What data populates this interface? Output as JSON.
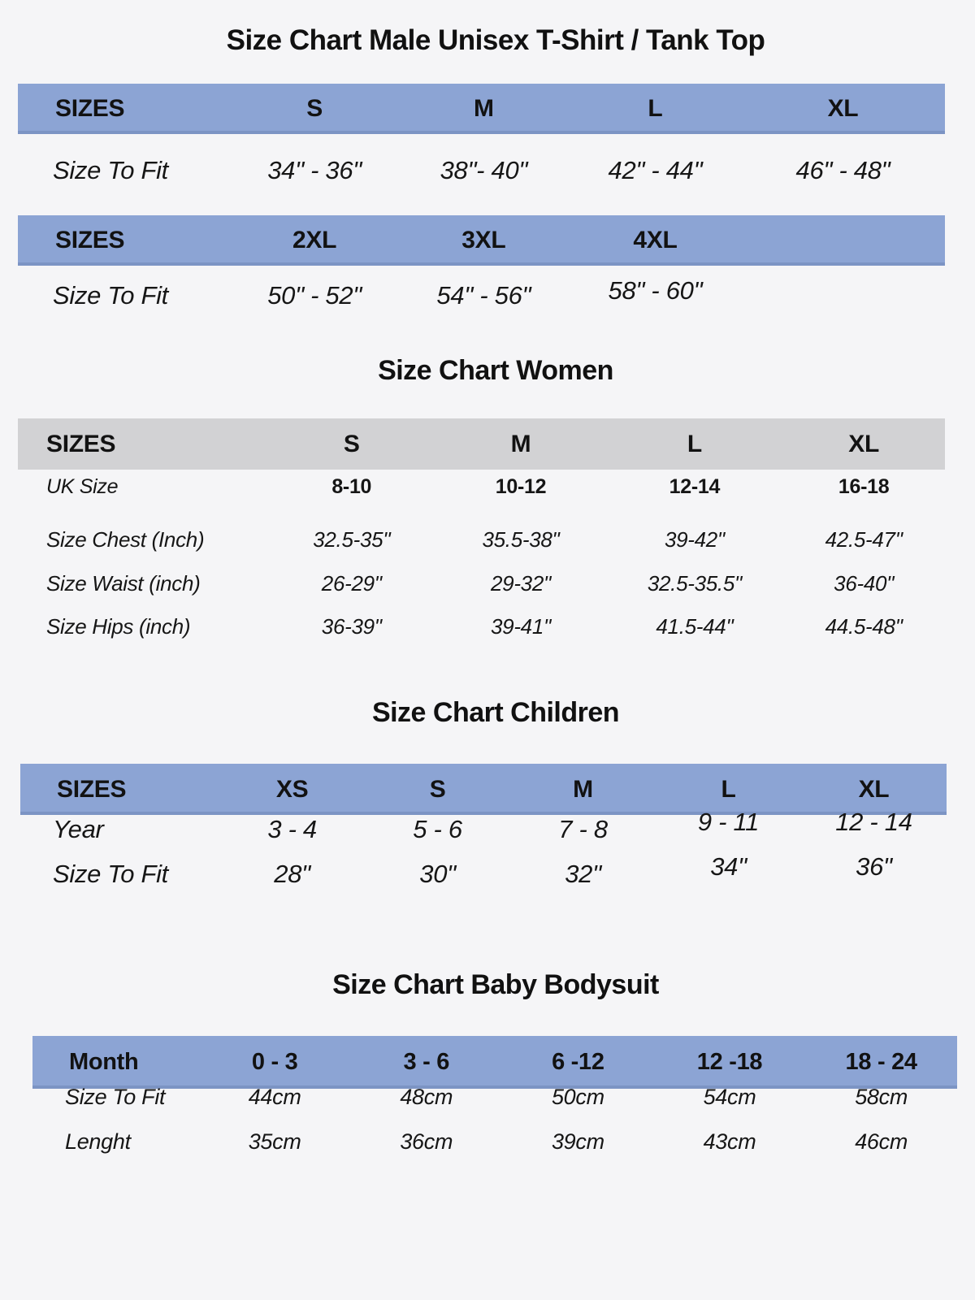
{
  "colors": {
    "background": "#f5f5f7",
    "band_blue": "#8ca4d4",
    "band_gray": "#d2d2d4",
    "text": "#161616"
  },
  "male": {
    "title": "Size Chart Male Unisex T-Shirt / Tank Top",
    "t1": {
      "corner": "SIZES",
      "h": [
        "S",
        "M",
        "L",
        "XL"
      ],
      "rowLabel": "Size To Fit",
      "v": [
        "34\" - 36\"",
        "38\"- 40\"",
        "42\" - 44\"",
        "46\" - 48\""
      ]
    },
    "t2": {
      "corner": "SIZES",
      "h": [
        "2XL",
        "3XL",
        "4XL"
      ],
      "rowLabel": "Size To Fit",
      "v": [
        "50\" - 52\"",
        "54\" - 56\"",
        "58\" - 60\""
      ]
    }
  },
  "women": {
    "title": "Size Chart Women",
    "corner": "SIZES",
    "h": [
      "S",
      "M",
      "L",
      "XL"
    ],
    "rows": [
      {
        "label": "UK Size",
        "v": [
          "8-10",
          "10-12",
          "12-14",
          "16-18"
        ]
      },
      {
        "label": "Size Chest (Inch)",
        "v": [
          "32.5-35\"",
          "35.5-38\"",
          "39-42\"",
          "42.5-47\""
        ]
      },
      {
        "label": "Size Waist (inch)",
        "v": [
          "26-29\"",
          "29-32\"",
          "32.5-35.5\"",
          "36-40\""
        ]
      },
      {
        "label": "Size Hips (inch)",
        "v": [
          "36-39\"",
          "39-41\"",
          "41.5-44\"",
          "44.5-48\""
        ]
      }
    ]
  },
  "children": {
    "title": "Size Chart Children",
    "corner": "SIZES",
    "h": [
      "XS",
      "S",
      "M",
      "L",
      "XL"
    ],
    "rows": [
      {
        "label": "Year",
        "v": [
          "3 - 4",
          "5 - 6",
          "7 - 8",
          "9 - 11",
          "12 - 14"
        ]
      },
      {
        "label": "Size To Fit",
        "v": [
          "28\"",
          "30\"",
          "32\"",
          "34\"",
          "36\""
        ]
      }
    ]
  },
  "baby": {
    "title": "Size Chart Baby Bodysuit",
    "corner": "Month",
    "h": [
      "0 - 3",
      "3 - 6",
      "6 -12",
      "12 -18",
      "18 - 24"
    ],
    "rows": [
      {
        "label": "Size To Fit",
        "v": [
          "44cm",
          "48cm",
          "50cm",
          "54cm",
          "58cm"
        ]
      },
      {
        "label": "Lenght",
        "v": [
          "35cm",
          "36cm",
          "39cm",
          "43cm",
          "46cm"
        ]
      }
    ]
  }
}
